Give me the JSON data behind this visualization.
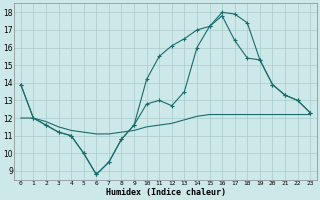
{
  "xlabel": "Humidex (Indice chaleur)",
  "bg_color": "#cde8e8",
  "grid_color": "#aacccc",
  "line_color": "#1a6b6b",
  "xlim": [
    -0.5,
    23.5
  ],
  "ylim": [
    8.5,
    18.5
  ],
  "yticks": [
    9,
    10,
    11,
    12,
    13,
    14,
    15,
    16,
    17,
    18
  ],
  "xticks": [
    0,
    1,
    2,
    3,
    4,
    5,
    6,
    7,
    8,
    9,
    10,
    11,
    12,
    13,
    14,
    15,
    16,
    17,
    18,
    19,
    20,
    21,
    22,
    23
  ],
  "line1_x": [
    0,
    1,
    2,
    3,
    4,
    5,
    6,
    7,
    8,
    9,
    10,
    11,
    12,
    13,
    14,
    15,
    16,
    17,
    18,
    19,
    20,
    21,
    22,
    23
  ],
  "line1_y": [
    13.9,
    12.0,
    11.6,
    11.2,
    11.0,
    10.0,
    8.8,
    9.5,
    10.8,
    11.6,
    12.8,
    13.0,
    12.7,
    13.5,
    16.0,
    17.2,
    18.0,
    17.9,
    17.4,
    15.3,
    13.9,
    13.3,
    13.0,
    12.3
  ],
  "line2_x": [
    0,
    1,
    2,
    3,
    4,
    5,
    6,
    7,
    8,
    9,
    10,
    11,
    12,
    13,
    14,
    15,
    16,
    17,
    18,
    19,
    20,
    21,
    22,
    23
  ],
  "line2_y": [
    13.9,
    12.0,
    11.6,
    11.2,
    11.0,
    10.0,
    8.8,
    9.5,
    10.8,
    11.6,
    14.2,
    15.5,
    16.1,
    16.5,
    17.0,
    17.2,
    17.8,
    16.4,
    15.4,
    15.3,
    13.9,
    13.3,
    13.0,
    12.3
  ],
  "line3_x": [
    0,
    1,
    2,
    3,
    4,
    5,
    6,
    7,
    8,
    9,
    10,
    11,
    12,
    13,
    14,
    15,
    16,
    17,
    18,
    19,
    20,
    21,
    22,
    23
  ],
  "line3_y": [
    12.0,
    12.0,
    11.8,
    11.5,
    11.3,
    11.2,
    11.1,
    11.1,
    11.2,
    11.3,
    11.5,
    11.6,
    11.7,
    11.9,
    12.1,
    12.2,
    12.2,
    12.2,
    12.2,
    12.2,
    12.2,
    12.2,
    12.2,
    12.2
  ]
}
